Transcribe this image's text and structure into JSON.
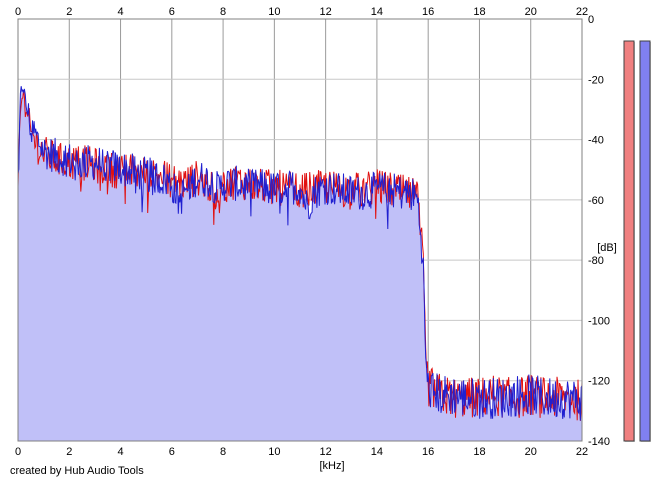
{
  "chart_data": {
    "type": "area",
    "title": "",
    "xlabel": "[kHz]",
    "ylabel": "[dB]",
    "xlim": [
      0,
      22
    ],
    "ylim": [
      -140,
      0
    ],
    "x_ticks": [
      0,
      2,
      4,
      6,
      8,
      10,
      12,
      14,
      16,
      18,
      20,
      22
    ],
    "y_ticks": [
      0,
      -20,
      -40,
      -60,
      -80,
      -100,
      -120,
      -140
    ],
    "grid": true,
    "legend": "none",
    "series": [
      {
        "color": "#2020d0",
        "fill": "#c0c0f8",
        "x": [
          0,
          0.1,
          0.2,
          0.3,
          0.5,
          0.8,
          1.0,
          1.5,
          2.0,
          2.5,
          3.0,
          3.5,
          4.0,
          4.5,
          5.0,
          5.5,
          6.0,
          6.3,
          6.5,
          7.0,
          7.5,
          7.8,
          8.0,
          8.5,
          9.0,
          9.5,
          10.0,
          10.5,
          11.0,
          11.3,
          11.5,
          12.0,
          12.5,
          13.0,
          13.5,
          14.0,
          14.5,
          15.0,
          15.5,
          15.6,
          15.8,
          15.9,
          16.0,
          16.5,
          17.0,
          17.5,
          18.0,
          18.5,
          19.0,
          19.5,
          20.0,
          20.5,
          21.0,
          21.5,
          22.0
        ],
        "values": [
          -52,
          -25,
          -21,
          -28,
          -35,
          -40,
          -43,
          -45,
          -46,
          -47,
          -47,
          -48,
          -49,
          -50,
          -51,
          -52,
          -54,
          -60,
          -56,
          -52,
          -53,
          -56,
          -54,
          -54,
          -55,
          -55,
          -56,
          -55,
          -55,
          -62,
          -57,
          -55,
          -56,
          -57,
          -57,
          -56,
          -56,
          -57,
          -58,
          -60,
          -80,
          -112,
          -122,
          -124,
          -124,
          -125,
          -125,
          -125,
          -125,
          -124,
          -124,
          -125,
          -125,
          -125,
          -126
        ]
      },
      {
        "color": "#e01010",
        "x": [
          0,
          0.1,
          0.2,
          0.3,
          0.5,
          0.8,
          1.0,
          1.5,
          2.0,
          2.5,
          3.0,
          3.5,
          4.0,
          4.5,
          5.0,
          5.5,
          6.0,
          6.5,
          7.0,
          7.5,
          7.8,
          8.0,
          8.5,
          9.0,
          9.5,
          10.0,
          10.5,
          11.0,
          11.5,
          12.0,
          12.5,
          13.0,
          13.5,
          14.0,
          14.5,
          15.0,
          15.5,
          15.6,
          15.8,
          15.9,
          16.0,
          16.5,
          17.0,
          17.5,
          18.0,
          18.5,
          19.0,
          19.5,
          20.0,
          20.5,
          21.0,
          21.5,
          22.0
        ],
        "values": [
          -54,
          -28,
          -24,
          -30,
          -37,
          -42,
          -44,
          -46,
          -47,
          -47,
          -48,
          -49,
          -50,
          -50,
          -51,
          -51,
          -53,
          -54,
          -52,
          -55,
          -62,
          -55,
          -53,
          -54,
          -55,
          -55,
          -56,
          -56,
          -56,
          -55,
          -56,
          -56,
          -56,
          -55,
          -56,
          -57,
          -58,
          -60,
          -80,
          -112,
          -121,
          -124,
          -125,
          -125,
          -125,
          -124,
          -125,
          -125,
          -124,
          -125,
          -125,
          -125,
          -126
        ]
      }
    ],
    "meters": [
      {
        "fill": "#f08080",
        "level": 1.0
      },
      {
        "fill": "#8080f0",
        "level": 1.0
      }
    ]
  },
  "footer": {
    "credit": "created by Hub Audio Tools"
  }
}
